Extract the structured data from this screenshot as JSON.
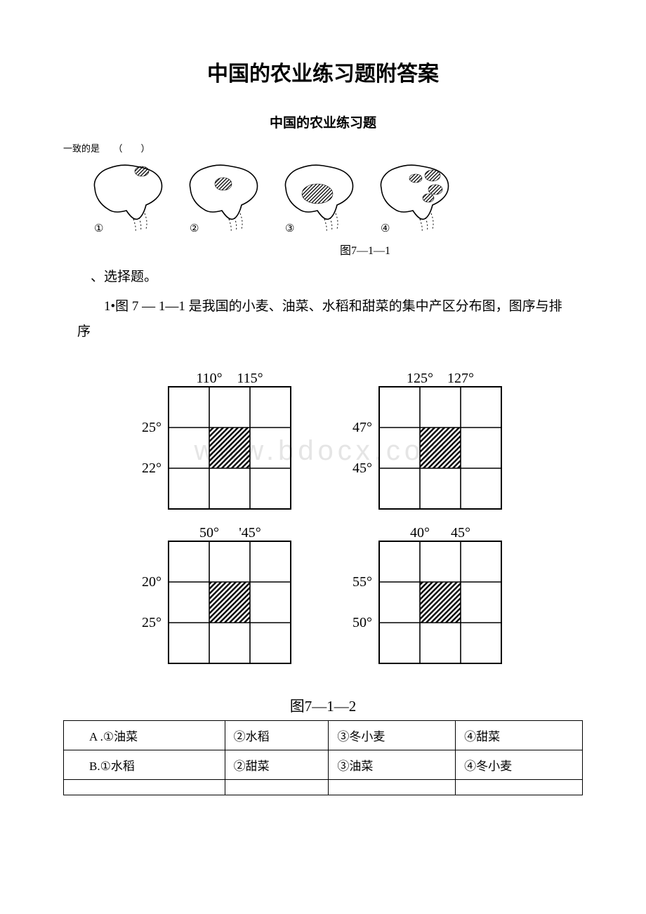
{
  "title": "中国的农业练习题附答案",
  "subtitle": "中国的农业练习题",
  "small_note": "一致的是　　（　　）",
  "figure1": {
    "caption": "图7—1—1",
    "maps": [
      {
        "num": "①"
      },
      {
        "num": "②"
      },
      {
        "num": "③"
      },
      {
        "num": "④"
      }
    ]
  },
  "section_label": "、选择题。",
  "q1_text": "1•图 7 — 1—1 是我国的小麦、油菜、水稻和甜菜的集中产区分布图，图序与排序",
  "watermark": "www.bdocx.com",
  "figure2": {
    "caption": "图7—1—2",
    "grids": [
      {
        "top": [
          "110°",
          "115°"
        ],
        "left": [
          "25°",
          "22°"
        ]
      },
      {
        "top": [
          "125°",
          "127°"
        ],
        "left": [
          "47°",
          "45°"
        ]
      },
      {
        "top": [
          "50°",
          "'45°"
        ],
        "left": [
          "20°",
          "25°"
        ]
      },
      {
        "top": [
          "40°",
          "45°"
        ],
        "left": [
          "55°",
          "50°"
        ]
      }
    ]
  },
  "answers": {
    "rows": [
      [
        "A .①油菜",
        "②水稻",
        "③冬小麦",
        "④甜菜"
      ],
      [
        "B.①水稻",
        "②甜菜",
        "③油菜",
        "④冬小麦"
      ],
      [
        "",
        "",
        "",
        ""
      ]
    ]
  }
}
